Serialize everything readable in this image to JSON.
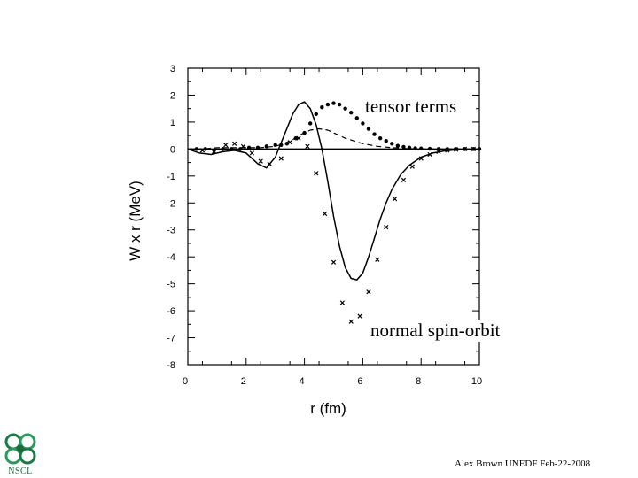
{
  "slide": {
    "footer": "Alex Brown UNEDF Feb-22-2008",
    "logo_text": "NSCL",
    "logo_icon": "nscl-logo-icon",
    "annotation_tensor": "tensor terms",
    "annotation_normal": "normal spin-orbit"
  },
  "chart_data": {
    "type": "line",
    "title": "",
    "xlabel": "r (fm)",
    "ylabel": "W x r (MeV)",
    "xlim": [
      0,
      10
    ],
    "ylim": [
      -8,
      3
    ],
    "xticks": [
      0,
      2,
      4,
      6,
      8,
      10
    ],
    "yticks": [
      3,
      2,
      1,
      0,
      -1,
      -2,
      -3,
      -4,
      -5,
      -6,
      -7,
      -8
    ],
    "grid": false,
    "legend": "none",
    "zero_line": true,
    "series": [
      {
        "style": "solid",
        "x": [
          0.0,
          0.4,
          0.8,
          1.2,
          1.6,
          2.0,
          2.4,
          2.7,
          3.0,
          3.3,
          3.6,
          3.8,
          4.0,
          4.2,
          4.4,
          4.6,
          4.8,
          5.0,
          5.2,
          5.4,
          5.6,
          5.8,
          6.0,
          6.2,
          6.4,
          6.6,
          6.8,
          7.0,
          7.3,
          7.6,
          8.0,
          8.4,
          8.8,
          9.2,
          9.6,
          10.0
        ],
        "y": [
          0.0,
          -0.15,
          -0.2,
          -0.1,
          -0.05,
          -0.15,
          -0.55,
          -0.7,
          -0.3,
          0.5,
          1.3,
          1.65,
          1.75,
          1.5,
          0.9,
          0.0,
          -1.2,
          -2.5,
          -3.6,
          -4.4,
          -4.8,
          -4.85,
          -4.6,
          -4.0,
          -3.3,
          -2.6,
          -2.0,
          -1.5,
          -0.95,
          -0.6,
          -0.3,
          -0.15,
          -0.07,
          -0.03,
          -0.01,
          0.0
        ]
      },
      {
        "style": "dashed",
        "x": [
          0.0,
          0.5,
          1.0,
          1.5,
          2.0,
          2.5,
          3.0,
          3.3,
          3.6,
          3.9,
          4.2,
          4.5,
          4.8,
          5.1,
          5.4,
          5.7,
          6.0,
          6.5,
          7.0,
          7.5,
          8.0,
          9.0,
          10.0
        ],
        "y": [
          0.0,
          0.0,
          0.05,
          0.05,
          0.05,
          0.05,
          0.1,
          0.2,
          0.35,
          0.55,
          0.7,
          0.75,
          0.7,
          0.55,
          0.4,
          0.3,
          0.2,
          0.1,
          0.05,
          0.02,
          0.0,
          0.0,
          0.0
        ]
      },
      {
        "style": "dots",
        "x": [
          0.3,
          0.6,
          0.9,
          1.2,
          1.5,
          1.8,
          2.1,
          2.4,
          2.7,
          3.0,
          3.2,
          3.4,
          3.7,
          4.0,
          4.2,
          4.4,
          4.6,
          4.8,
          5.0,
          5.2,
          5.4,
          5.6,
          5.8,
          6.0,
          6.2,
          6.4,
          6.6,
          6.8,
          7.0,
          7.2,
          7.4,
          7.6,
          7.8,
          8.0,
          8.3,
          8.6,
          8.9,
          9.2,
          9.5,
          9.8,
          10.0
        ],
        "y": [
          0.0,
          0.0,
          -0.05,
          0.0,
          0.0,
          0.0,
          0.05,
          0.05,
          0.1,
          0.15,
          0.15,
          0.2,
          0.4,
          0.6,
          0.95,
          1.3,
          1.55,
          1.65,
          1.7,
          1.65,
          1.5,
          1.35,
          1.15,
          0.95,
          0.75,
          0.55,
          0.4,
          0.3,
          0.2,
          0.12,
          0.08,
          0.05,
          0.03,
          0.02,
          0.01,
          0.0,
          0.0,
          0.0,
          0.0,
          0.0,
          0.0
        ]
      },
      {
        "style": "crosses",
        "x": [
          0.5,
          0.9,
          1.3,
          1.6,
          1.9,
          2.2,
          2.5,
          2.8,
          3.2,
          3.5,
          3.8,
          4.1,
          4.4,
          4.7,
          5.0,
          5.3,
          5.6,
          5.9,
          6.2,
          6.5,
          6.8,
          7.1,
          7.4,
          7.7,
          8.0,
          8.3,
          8.6,
          8.9,
          9.2,
          9.5,
          9.8
        ],
        "y": [
          -0.05,
          -0.1,
          0.15,
          0.2,
          0.1,
          -0.15,
          -0.45,
          -0.55,
          -0.35,
          0.25,
          0.4,
          0.1,
          -0.9,
          -2.4,
          -4.2,
          -5.7,
          -6.4,
          -6.2,
          -5.3,
          -4.1,
          -2.9,
          -1.85,
          -1.15,
          -0.65,
          -0.35,
          -0.2,
          -0.1,
          -0.05,
          -0.02,
          0.0,
          0.0
        ]
      }
    ]
  }
}
